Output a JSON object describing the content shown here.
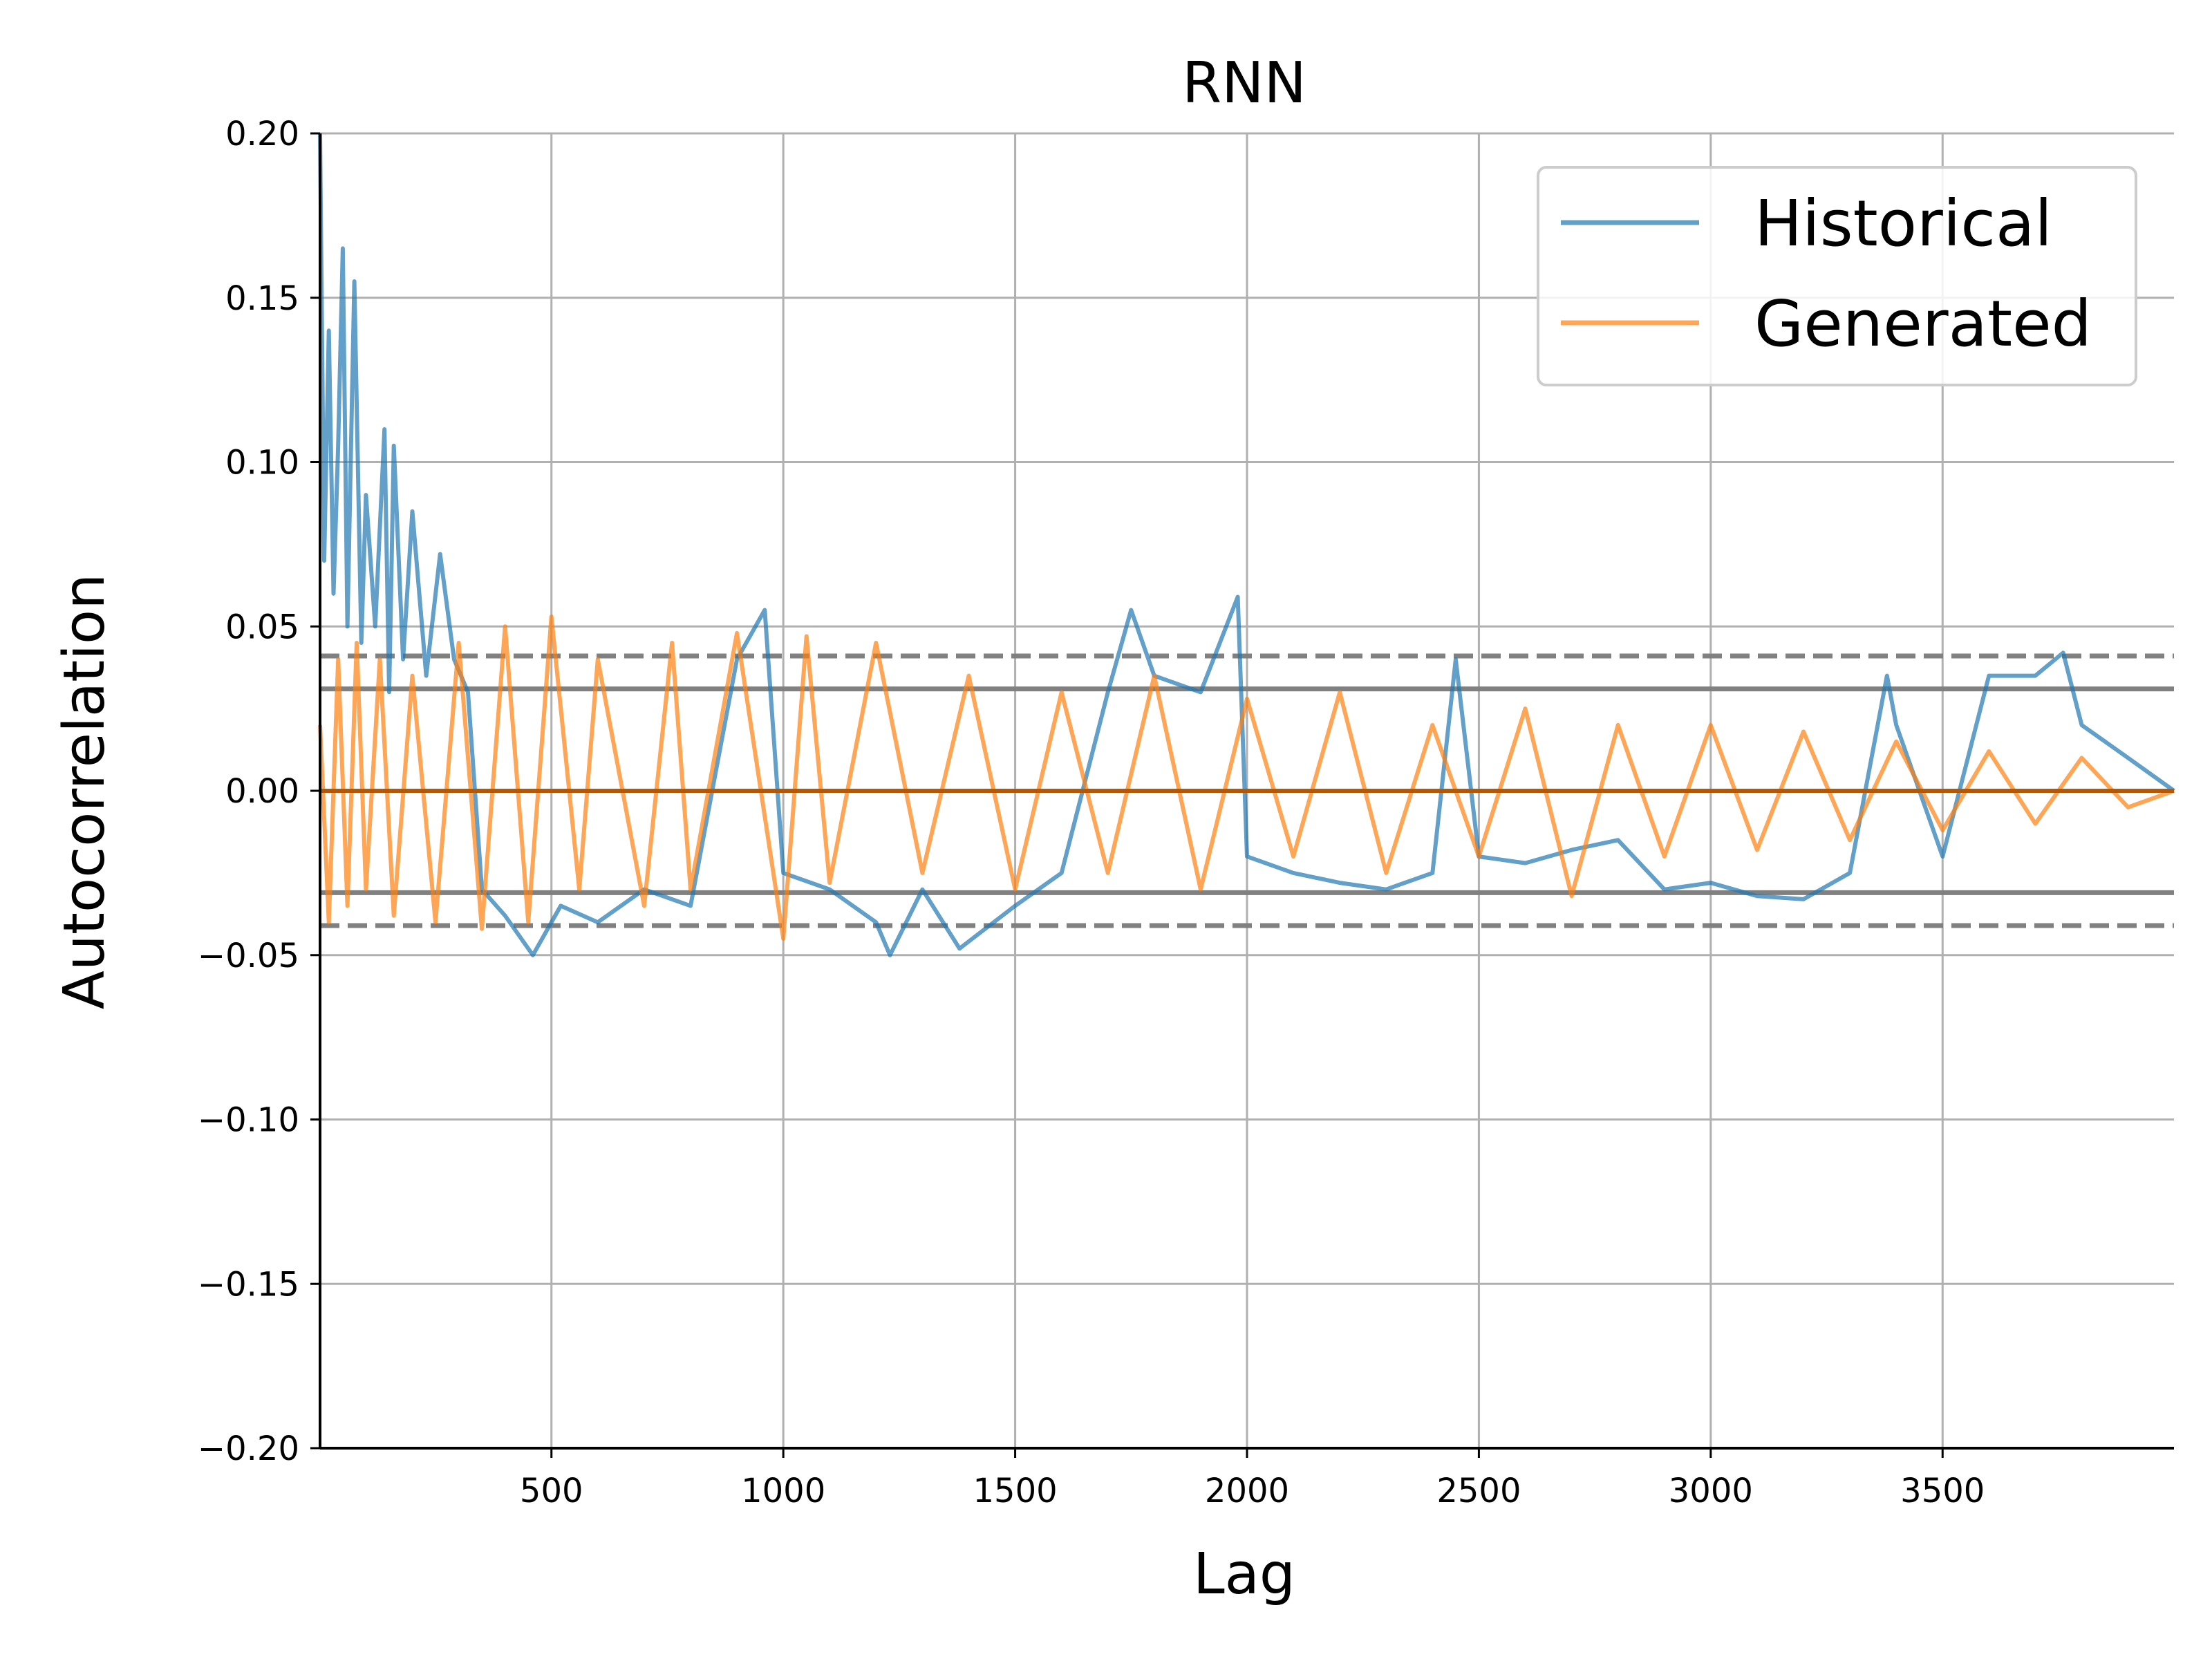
{
  "chart_data": {
    "type": "line",
    "title": "RNN",
    "xlabel": "Lag",
    "ylabel": "Autocorrelation",
    "xlim": [
      1,
      3999
    ],
    "ylim": [
      -0.2,
      0.2
    ],
    "x_ticks": [
      500,
      1000,
      1500,
      2000,
      2500,
      3000,
      3500
    ],
    "x_tick_labels": [
      "500",
      "1000",
      "1500",
      "2000",
      "2500",
      "3000",
      "3500"
    ],
    "y_ticks": [
      -0.2,
      -0.15,
      -0.1,
      -0.05,
      0.0,
      0.05,
      0.1,
      0.15,
      0.2
    ],
    "y_tick_labels": [
      "−0.20",
      "−0.15",
      "−0.10",
      "−0.05",
      "0.00",
      "0.05",
      "0.10",
      "0.15",
      "0.20"
    ],
    "grid": true,
    "legend": {
      "position": "top-right",
      "entries": [
        "Historical",
        "Generated"
      ]
    },
    "confidence_bands": {
      "solid": 0.031,
      "dashed": 0.041
    },
    "series": [
      {
        "name": "Historical",
        "color": "#1f77b4",
        "alpha": 0.7,
        "x": [
          1,
          10,
          20,
          30,
          40,
          50,
          60,
          75,
          90,
          100,
          120,
          140,
          150,
          160,
          180,
          200,
          230,
          260,
          290,
          320,
          350,
          400,
          460,
          520,
          600,
          700,
          800,
          900,
          960,
          1000,
          1100,
          1200,
          1230,
          1300,
          1380,
          1500,
          1600,
          1700,
          1750,
          1800,
          1900,
          1980,
          2000,
          2100,
          2200,
          2300,
          2400,
          2450,
          2500,
          2600,
          2700,
          2800,
          2900,
          3000,
          3100,
          3200,
          3300,
          3380,
          3400,
          3500,
          3600,
          3700,
          3760,
          3800,
          3900,
          3999
        ],
        "y": [
          0.2,
          0.07,
          0.14,
          0.06,
          0.105,
          0.165,
          0.05,
          0.155,
          0.045,
          0.09,
          0.05,
          0.11,
          0.03,
          0.105,
          0.04,
          0.085,
          0.035,
          0.072,
          0.04,
          0.03,
          -0.03,
          -0.038,
          -0.05,
          -0.035,
          -0.04,
          -0.03,
          -0.035,
          0.04,
          0.055,
          -0.025,
          -0.03,
          -0.04,
          -0.05,
          -0.03,
          -0.048,
          -0.035,
          -0.025,
          0.03,
          0.055,
          0.035,
          0.03,
          0.059,
          -0.02,
          -0.025,
          -0.028,
          -0.03,
          -0.025,
          0.04,
          -0.02,
          -0.022,
          -0.018,
          -0.015,
          -0.03,
          -0.028,
          -0.032,
          -0.033,
          -0.025,
          0.035,
          0.02,
          -0.02,
          0.035,
          0.035,
          0.042,
          0.02,
          0.01,
          0.0
        ]
      },
      {
        "name": "Generated",
        "color": "#ff7f0e",
        "alpha": 0.7,
        "x": [
          1,
          20,
          40,
          60,
          80,
          100,
          130,
          160,
          200,
          250,
          300,
          350,
          400,
          450,
          500,
          560,
          600,
          700,
          760,
          800,
          900,
          1000,
          1050,
          1100,
          1200,
          1300,
          1400,
          1500,
          1600,
          1700,
          1800,
          1900,
          2000,
          2100,
          2200,
          2300,
          2400,
          2500,
          2600,
          2700,
          2800,
          2900,
          3000,
          3100,
          3200,
          3300,
          3400,
          3500,
          3600,
          3700,
          3800,
          3900,
          3999
        ],
        "y": [
          0.02,
          -0.04,
          0.04,
          -0.035,
          0.045,
          -0.03,
          0.04,
          -0.038,
          0.035,
          -0.04,
          0.045,
          -0.042,
          0.05,
          -0.04,
          0.053,
          -0.03,
          0.04,
          -0.035,
          0.045,
          -0.03,
          0.048,
          -0.045,
          0.047,
          -0.028,
          0.045,
          -0.025,
          0.035,
          -0.03,
          0.03,
          -0.025,
          0.035,
          -0.03,
          0.028,
          -0.02,
          0.03,
          -0.025,
          0.02,
          -0.02,
          0.025,
          -0.032,
          0.02,
          -0.02,
          0.02,
          -0.018,
          0.018,
          -0.015,
          0.015,
          -0.012,
          0.012,
          -0.01,
          0.01,
          -0.005,
          0.0
        ]
      }
    ]
  }
}
